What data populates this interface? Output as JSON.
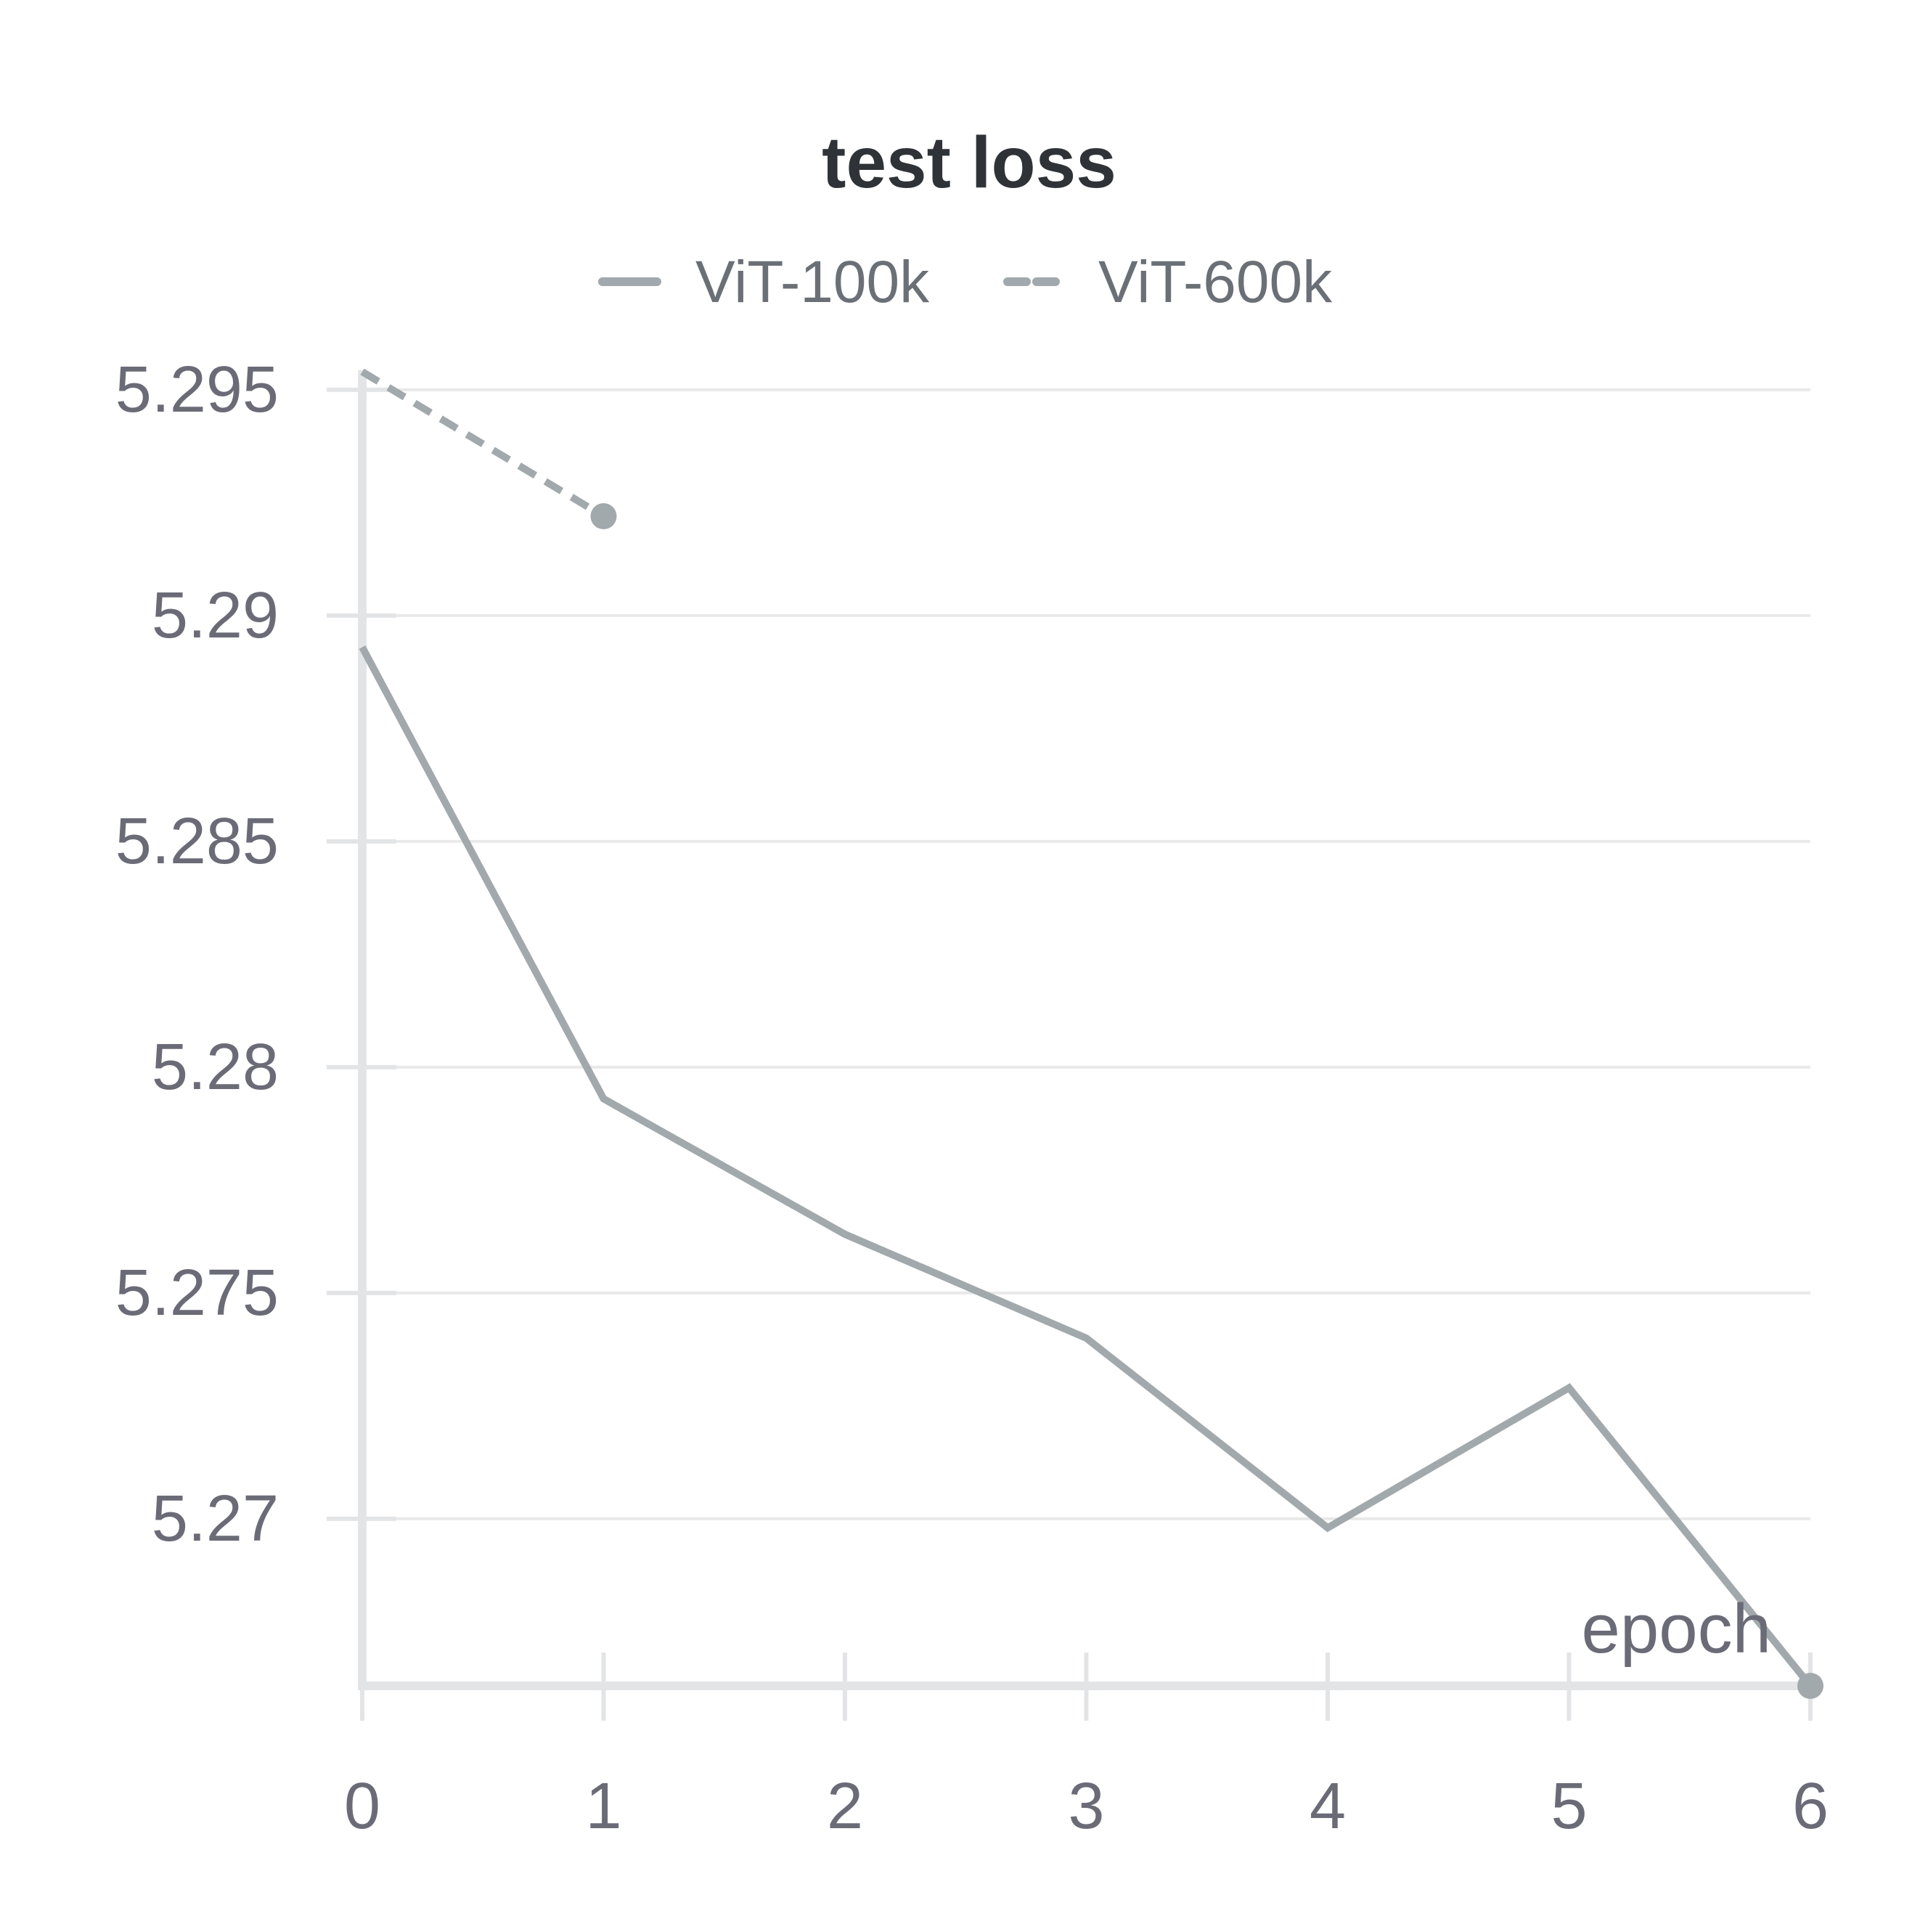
{
  "chart_data": {
    "type": "line",
    "title": "test loss",
    "xlabel": "epoch",
    "ylabel": "",
    "xlim": [
      0,
      6
    ],
    "ylim": [
      5.2663,
      5.2954
    ],
    "x_ticks": [
      "0",
      "1",
      "2",
      "3",
      "4",
      "5",
      "6"
    ],
    "y_ticks": [
      "5.27",
      "5.275",
      "5.28",
      "5.285",
      "5.29",
      "5.295"
    ],
    "grid": true,
    "legend_position": "top-center",
    "series": [
      {
        "name": "ViT-100k",
        "style": "solid",
        "color": "#a2a9ad",
        "x": [
          0,
          1,
          2,
          3,
          4,
          5,
          6
        ],
        "y": [
          5.2893,
          5.2793,
          5.2763,
          5.274,
          5.2698,
          5.2729,
          5.2663
        ]
      },
      {
        "name": "ViT-600k",
        "style": "dashed",
        "color": "#a2a9ad",
        "x": [
          0,
          1
        ],
        "y": [
          5.2954,
          5.2922
        ]
      }
    ],
    "colors": {
      "axis": "#e3e4e6",
      "grid": "#e9e9ea",
      "text": "#6b6b78",
      "title": "#2f3337"
    }
  }
}
